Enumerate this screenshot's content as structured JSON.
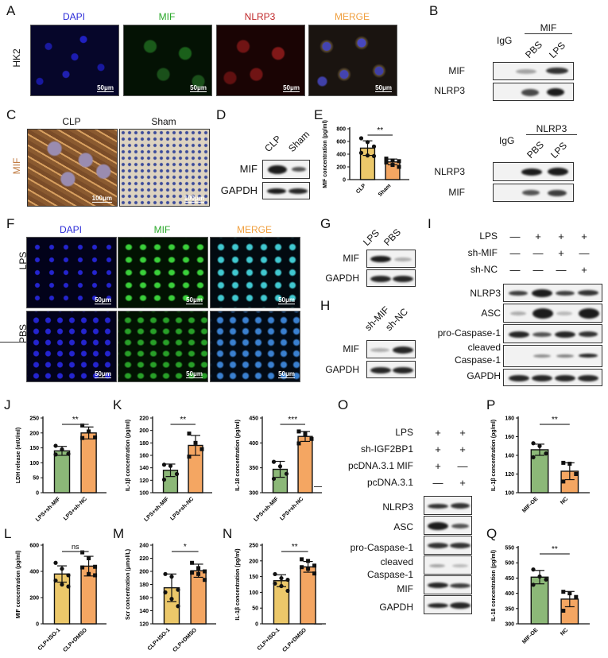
{
  "panels": {
    "A": {
      "letter": "A",
      "row_label": "HK2",
      "channels": [
        {
          "label": "DAPI",
          "color": "#2a2ad8"
        },
        {
          "label": "MIF",
          "color": "#2aa82a"
        },
        {
          "label": "NLRP3",
          "color": "#c0282a"
        },
        {
          "label": "MERGE",
          "color": "#f0a040"
        }
      ],
      "scale_bar": "50μm"
    },
    "B": {
      "letter": "B",
      "top": {
        "ip_label": "MIF",
        "igg_label": "IgG",
        "lanes": [
          "PBS",
          "LPS"
        ],
        "rows": [
          "MIF",
          "NLRP3"
        ]
      },
      "bottom": {
        "ip_label": "NLRP3",
        "igg_label": "IgG",
        "lanes": [
          "PBS",
          "LPS"
        ],
        "rows": [
          "NLRP3",
          "MIF"
        ]
      }
    },
    "C": {
      "letter": "C",
      "row_label": "MIF",
      "columns": [
        "CLP",
        "Sham"
      ],
      "scale_bar": "100μm"
    },
    "D": {
      "letter": "D",
      "lanes": [
        "CLP",
        "Sham"
      ],
      "rows": [
        "MIF",
        "GAPDH"
      ]
    },
    "E": {
      "letter": "E"
    },
    "F": {
      "letter": "F",
      "channels": [
        {
          "label": "DAPI",
          "color": "#2a2ad8"
        },
        {
          "label": "MIF",
          "color": "#2aa82a"
        },
        {
          "label": "MERGE",
          "color": "#f0a040"
        }
      ],
      "rows": [
        "LPS",
        "PBS"
      ],
      "scale_bar": "50μm"
    },
    "G": {
      "letter": "G",
      "lanes": [
        "LPS",
        "PBS"
      ],
      "rows": [
        "MIF",
        "GAPDH"
      ]
    },
    "H": {
      "letter": "H",
      "lanes": [
        "sh-MIF",
        "sh-NC"
      ],
      "rows": [
        "MIF",
        "GAPDH"
      ]
    },
    "I": {
      "letter": "I",
      "conditions": [
        {
          "label": "LPS",
          "values": [
            "—",
            "+",
            "+",
            "+"
          ]
        },
        {
          "label": "sh-MIF",
          "values": [
            "—",
            "—",
            "+",
            "—"
          ]
        },
        {
          "label": "sh-NC",
          "values": [
            "—",
            "—",
            "—",
            "+"
          ]
        }
      ],
      "rows": [
        "NLRP3",
        "ASC",
        "pro-Caspase-1",
        "cleaved\nCaspase-1",
        "GAPDH"
      ],
      "rows_display": [
        "NLRP3",
        "ASC",
        "pro-Caspase-1",
        "cleaved",
        "Caspase-1",
        "GAPDH"
      ]
    },
    "J": {
      "letter": "J"
    },
    "K": {
      "letter": "K"
    },
    "L": {
      "letter": "L"
    },
    "M": {
      "letter": "M"
    },
    "N": {
      "letter": "N"
    },
    "O": {
      "letter": "O",
      "conditions": [
        {
          "label": "LPS",
          "values": [
            "+",
            "+"
          ]
        },
        {
          "label": "sh-IGF2BP1",
          "values": [
            "+",
            "+"
          ]
        },
        {
          "label": "pcDNA.3.1 MIF",
          "values": [
            "+",
            "—"
          ]
        },
        {
          "label": "pcDNA.3.1",
          "values": [
            "—",
            "+"
          ]
        }
      ],
      "rows": [
        "NLRP3",
        "ASC",
        "pro-Caspase-1",
        "cleaved Caspase-1",
        "MIF",
        "GAPDH"
      ],
      "rows_display": [
        "NLRP3",
        "ASC",
        "pro-Caspase-1",
        "cleaved",
        "Caspase-1",
        "MIF",
        "GAPDH"
      ]
    },
    "P": {
      "letter": "P"
    },
    "Q": {
      "letter": "Q"
    }
  },
  "colors": {
    "yellow_bar": "#ecc86a",
    "orange_bar": "#f4a662",
    "green_bar": "#8cb878"
  },
  "chart_data": [
    {
      "panel": "E",
      "type": "bar",
      "title": "",
      "categories": [
        "CLP",
        "Sham"
      ],
      "values": [
        495,
        278
      ],
      "errors": [
        115,
        45
      ],
      "points": [
        [
          650,
          590,
          520,
          420,
          380,
          370
        ],
        [
          330,
          300,
          290,
          270,
          230,
          200
        ]
      ],
      "ylabel": "MIF concentration (pg/ml)",
      "ylim": [
        0,
        800
      ],
      "yticks": [
        0,
        200,
        400,
        600,
        800
      ],
      "significance": "**",
      "bar_colors": [
        "#ecc86a",
        "#f4a662"
      ]
    },
    {
      "panel": "J",
      "type": "bar",
      "title": "",
      "categories": [
        "LPS+sh-MIF",
        "LPS+sh-NC"
      ],
      "values": [
        140,
        200
      ],
      "errors": [
        15,
        20
      ],
      "points": [
        [
          157,
          145,
          130,
          128
        ],
        [
          225,
          205,
          185,
          183
        ]
      ],
      "ylabel": "LDH release (mIU/ml)",
      "ylim": [
        0,
        250
      ],
      "yticks": [
        0,
        50,
        100,
        150,
        200,
        250
      ],
      "significance": "**",
      "bar_colors": [
        "#8cb878",
        "#f4a662"
      ]
    },
    {
      "panel": "K1",
      "type": "bar",
      "title": "",
      "categories": [
        "LPS+sh-MIF",
        "LPS+sh-NC"
      ],
      "values": [
        136,
        176
      ],
      "errors": [
        10,
        16
      ],
      "points": [
        [
          145,
          143,
          130,
          121
        ],
        [
          195,
          180,
          170,
          158
        ]
      ],
      "ylabel": "IL-1β concentration (pg/ml)",
      "ylim": [
        100,
        220
      ],
      "yticks": [
        100,
        120,
        140,
        160,
        180,
        200,
        220
      ],
      "significance": "**",
      "bar_colors": [
        "#8cb878",
        "#f4a662"
      ]
    },
    {
      "panel": "K2",
      "type": "bar",
      "title": "",
      "categories": [
        "LPS+sh-MIF",
        "LPS+sh-NC"
      ],
      "values": [
        347,
        413
      ],
      "errors": [
        16,
        10
      ],
      "points": [
        [
          362,
          353,
          338,
          328
        ],
        [
          423,
          418,
          408,
          399
        ]
      ],
      "ylabel": "IL-18 concentration (pg/ml)",
      "ylim": [
        300,
        450
      ],
      "yticks": [
        300,
        350,
        400,
        450
      ],
      "significance": "***",
      "bar_colors": [
        "#8cb878",
        "#f4a662"
      ]
    },
    {
      "panel": "L",
      "type": "bar",
      "title": "",
      "categories": [
        "CLP+ISO-1",
        "CLP+DMSO"
      ],
      "values": [
        380,
        440
      ],
      "errors": [
        62,
        75
      ],
      "points": [
        [
          465,
          420,
          370,
          330,
          300,
          285
        ],
        [
          545,
          500,
          435,
          430,
          380,
          370
        ]
      ],
      "ylabel": "MIF concentration (pg/ml)",
      "ylim": [
        0,
        600
      ],
      "yticks": [
        0,
        200,
        400,
        600
      ],
      "significance": "ns",
      "bar_colors": [
        "#ecc86a",
        "#f4a662"
      ]
    },
    {
      "panel": "M",
      "type": "bar",
      "title": "",
      "categories": [
        "CLP+ISO-1",
        "CLP+DMSO"
      ],
      "values": [
        175,
        201
      ],
      "errors": [
        21,
        10
      ],
      "points": [
        [
          196,
          192,
          172,
          168,
          158,
          147
        ],
        [
          213,
          205,
          200,
          198,
          196,
          187
        ]
      ],
      "ylabel": "Scr concentration (μmol/L)",
      "ylim": [
        120,
        240
      ],
      "yticks": [
        120,
        140,
        160,
        180,
        200,
        220,
        240
      ],
      "significance": "*",
      "bar_colors": [
        "#ecc86a",
        "#f4a662"
      ]
    },
    {
      "panel": "N",
      "type": "bar",
      "title": "",
      "categories": [
        "CLP+ISO-1",
        "CLP+DMSO"
      ],
      "values": [
        137,
        181
      ],
      "errors": [
        19,
        17
      ],
      "points": [
        [
          158,
          145,
          140,
          128,
          120,
          105
        ],
        [
          205,
          200,
          185,
          180,
          175,
          160
        ]
      ],
      "ylabel": "IL-1β concentration (pg/ml)",
      "ylim": [
        0,
        250
      ],
      "yticks": [
        0,
        50,
        100,
        150,
        200,
        250
      ],
      "significance": "**",
      "bar_colors": [
        "#ecc86a",
        "#f4a662"
      ]
    },
    {
      "panel": "P",
      "type": "bar",
      "title": "",
      "categories": [
        "MIF-OE",
        "NC"
      ],
      "values": [
        146,
        123
      ],
      "errors": [
        6,
        9
      ],
      "points": [
        [
          153,
          150,
          142,
          138
        ],
        [
          132,
          131,
          120,
          112
        ]
      ],
      "ylabel": "IL-1β concentration (pg/ml)",
      "ylim": [
        100,
        180
      ],
      "yticks": [
        100,
        120,
        140,
        160,
        180
      ],
      "significance": "**",
      "bar_colors": [
        "#8cb878",
        "#f4a662"
      ]
    },
    {
      "panel": "Q",
      "type": "bar",
      "title": "",
      "categories": [
        "MIF-OE",
        "NC"
      ],
      "values": [
        453,
        381
      ],
      "errors": [
        22,
        25
      ],
      "points": [
        [
          478,
          455,
          445,
          428
        ],
        [
          405,
          400,
          388,
          343
        ]
      ],
      "ylabel": "IL-18 concentration (pg/ml)",
      "ylim": [
        300,
        550
      ],
      "yticks": [
        300,
        350,
        400,
        450,
        500,
        550
      ],
      "significance": "**",
      "bar_colors": [
        "#8cb878",
        "#f4a662"
      ]
    }
  ]
}
